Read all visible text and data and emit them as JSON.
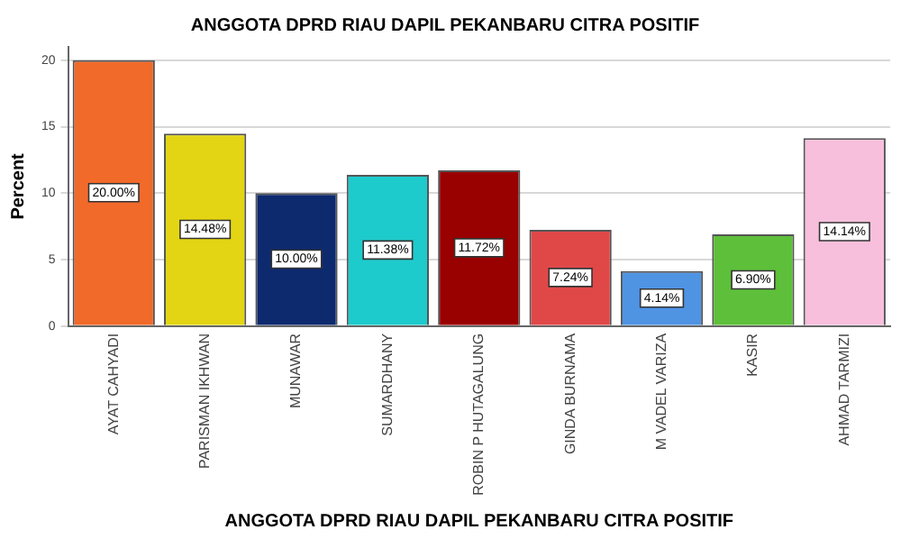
{
  "chart_data": {
    "type": "bar",
    "title": "ANGGOTA DPRD RIAU DAPIL PEKANBARU CITRA POSITIF",
    "xlabel": "ANGGOTA DPRD RIAU DAPIL PEKANBARU CITRA POSITIF",
    "ylabel": "Percent",
    "categories": [
      "AYAT CAHYADI",
      "PARISMAN IKHWAN",
      "MUNAWAR",
      "SUMARDHANY",
      "ROBIN P HUTAGALUNG",
      "GINDA BURNAMA",
      "M VADEL VARIZA",
      "KASIR",
      "AHMAD TARMIZI"
    ],
    "values": [
      20.0,
      14.48,
      10.0,
      11.38,
      11.72,
      7.24,
      4.14,
      6.9,
      14.14
    ],
    "value_labels": [
      "20.00%",
      "14.48%",
      "10.00%",
      "11.38%",
      "11.72%",
      "7.24%",
      "4.14%",
      "6.90%",
      "14.14%"
    ],
    "colors": [
      "#f26a2a",
      "#e3d513",
      "#0e2a6e",
      "#1ecbcc",
      "#990000",
      "#e04848",
      "#4f93e3",
      "#5dbf3a",
      "#f7bfdc"
    ],
    "ylim": [
      0,
      21
    ],
    "yticks": [
      0,
      5,
      10,
      15,
      20
    ],
    "grid": "y",
    "legend": false
  }
}
